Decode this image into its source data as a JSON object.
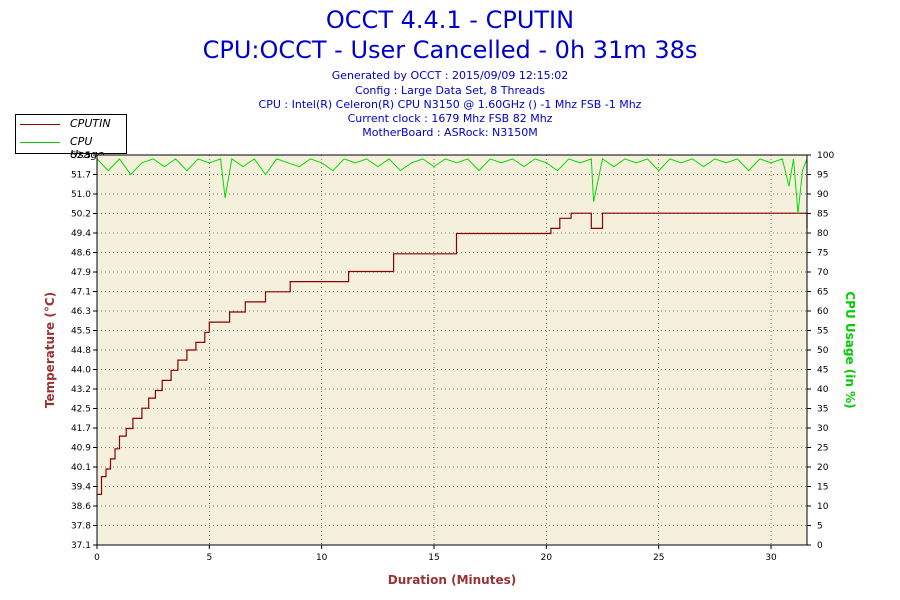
{
  "header": {
    "title": "OCCT 4.4.1 - CPUTIN",
    "subtitle": "CPU:OCCT - User Cancelled - 0h 31m 38s",
    "lines": [
      "Generated by OCCT : 2015/09/09 12:15:02",
      "Config : Large Data Set, 8 Threads",
      "CPU : Intel(R) Celeron(R) CPU N3150 @ 1.60GHz () -1 Mhz FSB -1 Mhz",
      "Current clock : 1679 Mhz FSB 82 Mhz",
      "MotherBoard : ASRock: N3150M"
    ]
  },
  "legend": [
    {
      "label": "CPUTIN",
      "color": "#8b0000"
    },
    {
      "label": "CPU Usage",
      "color": "#00cc00"
    }
  ],
  "colors": {
    "plot_bg": "#f5f0dc",
    "grid": "#000000",
    "temp": "#8b0000",
    "usage": "#00dd00",
    "left_axis_title": "#993333",
    "right_axis_title": "#00cc00",
    "x_axis_title": "#993333",
    "title": "#0000cc"
  },
  "chart_data": {
    "type": "line",
    "xlabel": "Duration (Minutes)",
    "ylabel": "Temperature (°C)",
    "y2label": "CPU Usage (in %)",
    "xlim": [
      0,
      31.6
    ],
    "ylim": [
      37.1,
      52.5
    ],
    "y2lim": [
      0,
      100
    ],
    "x_ticks": [
      "0",
      "5",
      "10",
      "15",
      "20",
      "25",
      "30"
    ],
    "y_ticks": [
      "37.1",
      "37.8",
      "38.6",
      "39.4",
      "40.1",
      "40.9",
      "41.7",
      "42.5",
      "43.2",
      "44.0",
      "44.8",
      "45.5",
      "46.3",
      "47.1",
      "47.9",
      "48.6",
      "49.4",
      "50.2",
      "51.0",
      "51.7",
      "52.5"
    ],
    "y2_ticks": [
      "0",
      "5",
      "10",
      "15",
      "20",
      "25",
      "30",
      "35",
      "40",
      "45",
      "50",
      "55",
      "60",
      "65",
      "70",
      "75",
      "80",
      "85",
      "90",
      "95",
      "100"
    ],
    "grid": true,
    "legend_position": "top-left",
    "series": [
      {
        "name": "CPUTIN",
        "axis": "left",
        "step": true,
        "x": [
          0,
          0.2,
          0.4,
          0.6,
          0.8,
          1.0,
          1.3,
          1.6,
          2.0,
          2.3,
          2.6,
          2.9,
          3.3,
          3.6,
          4.0,
          4.4,
          4.8,
          5.0,
          5.9,
          6.6,
          7.5,
          8.6,
          11.2,
          13.2,
          16.0,
          20.2,
          20.6,
          21.1,
          22.0,
          22.5,
          31.1,
          31.6
        ],
        "values": [
          39.1,
          39.8,
          40.1,
          40.5,
          40.9,
          41.4,
          41.7,
          42.1,
          42.5,
          42.9,
          43.2,
          43.6,
          44.0,
          44.4,
          44.8,
          45.1,
          45.5,
          45.9,
          46.3,
          46.7,
          47.1,
          47.5,
          47.9,
          48.6,
          49.4,
          49.6,
          50.0,
          50.2,
          49.6,
          50.2,
          50.2,
          49.6
        ]
      },
      {
        "name": "CPU Usage",
        "axis": "right",
        "x": [
          0,
          0.5,
          1.0,
          1.5,
          2.0,
          2.5,
          3.0,
          3.5,
          4.0,
          4.5,
          5.0,
          5.5,
          5.7,
          6.0,
          6.5,
          7.0,
          7.5,
          8.0,
          8.5,
          9.0,
          9.5,
          10.0,
          10.5,
          11.0,
          11.5,
          12.0,
          12.5,
          13.0,
          13.5,
          14.0,
          14.5,
          15.0,
          15.5,
          16.0,
          16.5,
          17.0,
          17.5,
          18.0,
          18.5,
          19.0,
          19.5,
          20.0,
          20.5,
          21.0,
          21.5,
          22.0,
          22.1,
          22.5,
          23.0,
          23.5,
          24.0,
          24.5,
          25.0,
          25.5,
          26.0,
          26.5,
          27.0,
          27.5,
          28.0,
          28.5,
          29.0,
          29.5,
          30.0,
          30.5,
          30.8,
          31.0,
          31.2,
          31.4,
          31.6
        ],
        "values": [
          99,
          96,
          99,
          95,
          98,
          99,
          97,
          99,
          96,
          99,
          98,
          99,
          89,
          99,
          97,
          99,
          95,
          99,
          98,
          97,
          99,
          98,
          96,
          99,
          98,
          99,
          97,
          99,
          96,
          98,
          99,
          97,
          99,
          98,
          99,
          96,
          99,
          98,
          99,
          97,
          99,
          98,
          96,
          99,
          98,
          99,
          88,
          99,
          97,
          99,
          98,
          99,
          96,
          99,
          98,
          99,
          97,
          99,
          98,
          99,
          96,
          99,
          98,
          99,
          92,
          99,
          85,
          96,
          99
        ]
      }
    ]
  }
}
